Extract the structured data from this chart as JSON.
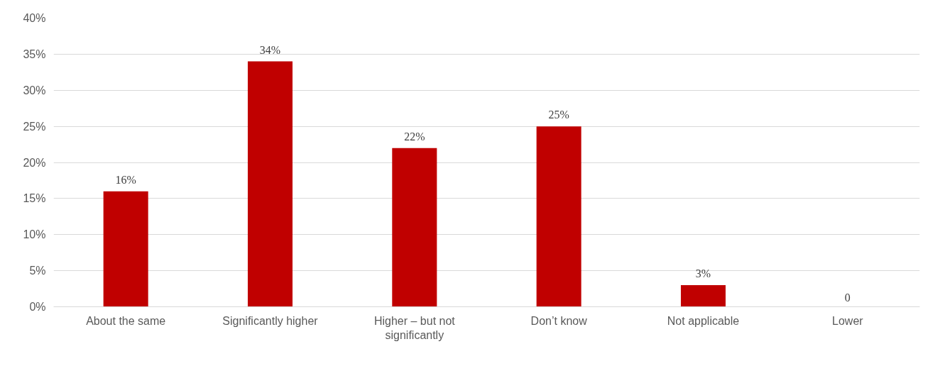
{
  "chart_data": {
    "type": "bar",
    "categories": [
      "About the same",
      "Significantly higher",
      "Higher – but not significantly",
      "Don’t know",
      "Not applicable",
      "Lower"
    ],
    "values": [
      16,
      34,
      22,
      25,
      3,
      0
    ],
    "value_labels": [
      "16%",
      "34%",
      "22%",
      "25%",
      "3%",
      "0"
    ],
    "color": "#c00000",
    "ylim": [
      0,
      40
    ],
    "yticks": [
      {
        "value": 0,
        "label": "0%"
      },
      {
        "value": 5,
        "label": "5%"
      },
      {
        "value": 10,
        "label": "10%"
      },
      {
        "value": 15,
        "label": "15%"
      },
      {
        "value": 20,
        "label": "20%"
      },
      {
        "value": 25,
        "label": "25%"
      },
      {
        "value": 30,
        "label": "30%"
      },
      {
        "value": 35,
        "label": "35%"
      },
      {
        "value": 40,
        "label": "40%"
      }
    ],
    "grid": "y"
  }
}
